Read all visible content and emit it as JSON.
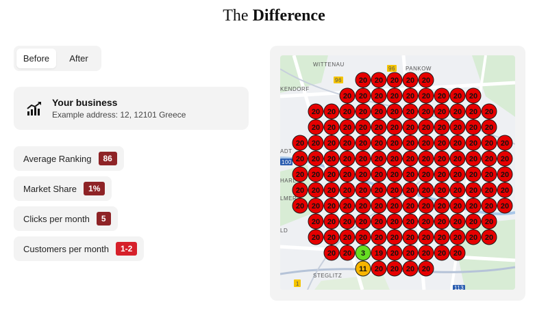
{
  "title": {
    "light": "The",
    "bold": "Difference"
  },
  "toggle": {
    "before_label": "Before",
    "after_label": "After",
    "active": "before"
  },
  "business": {
    "name": "Your business",
    "address": "Example address: 12, 12101 Greece",
    "icon": "growth-chart-icon"
  },
  "metrics": [
    {
      "label": "Average Ranking",
      "value": "86",
      "color": "#8e2326"
    },
    {
      "label": "Market Share",
      "value": "1%",
      "color": "#8e2326"
    },
    {
      "label": "Clicks per month",
      "value": "5",
      "color": "#8e2326"
    },
    {
      "label": "Customers per month",
      "value": "1-2",
      "color": "#d6202a"
    }
  ],
  "map": {
    "place_labels": [
      "WITTENAU",
      "PANKOW",
      "KENDORF",
      "ADT",
      "HARL",
      "LMER",
      "LD",
      "STEGLITZ"
    ],
    "road_badges": [
      "96",
      "96",
      "100",
      "113",
      "1"
    ],
    "pin_colors": {
      "red": "#e60000",
      "green": "#66dd22",
      "orange": "#f7b500"
    },
    "grid_rows": [
      [
        "",
        "",
        "",
        "",
        "",
        "20",
        "20",
        "20",
        "20",
        "20",
        "",
        "",
        "",
        "",
        ""
      ],
      [
        "",
        "",
        "",
        "",
        "20",
        "20",
        "20",
        "20",
        "20",
        "20",
        "20",
        "20",
        "20",
        "",
        ""
      ],
      [
        "",
        "",
        "20",
        "20",
        "20",
        "20",
        "20",
        "20",
        "20",
        "20",
        "20",
        "20",
        "20",
        "20",
        ""
      ],
      [
        "",
        "",
        "20",
        "20",
        "20",
        "20",
        "20",
        "20",
        "20",
        "20",
        "20",
        "20",
        "20",
        "20",
        ""
      ],
      [
        "",
        "20",
        "20",
        "20",
        "20",
        "20",
        "20",
        "20",
        "20",
        "20",
        "20",
        "20",
        "20",
        "20",
        "20"
      ],
      [
        "",
        "20",
        "20",
        "20",
        "20",
        "20",
        "20",
        "20",
        "20",
        "20",
        "20",
        "20",
        "20",
        "20",
        "20"
      ],
      [
        "",
        "20",
        "20",
        "20",
        "20",
        "20",
        "20",
        "20",
        "20",
        "20",
        "20",
        "20",
        "20",
        "20",
        "20"
      ],
      [
        "",
        "20",
        "20",
        "20",
        "20",
        "20",
        "20",
        "20",
        "20",
        "20",
        "20",
        "20",
        "20",
        "20",
        "20"
      ],
      [
        "",
        "20",
        "20",
        "20",
        "20",
        "20",
        "20",
        "20",
        "20",
        "20",
        "20",
        "20",
        "20",
        "20",
        "20"
      ],
      [
        "",
        "",
        "20",
        "20",
        "20",
        "20",
        "20",
        "20",
        "20",
        "20",
        "20",
        "20",
        "20",
        "20",
        ""
      ],
      [
        "",
        "",
        "20",
        "20",
        "20",
        "20",
        "20",
        "20",
        "20",
        "20",
        "20",
        "20",
        "20",
        "20",
        ""
      ],
      [
        "",
        "",
        "",
        "20",
        "20",
        "3",
        "19",
        "20",
        "20",
        "20",
        "20",
        "20",
        "",
        "",
        ""
      ],
      [
        "",
        "",
        "",
        "",
        "",
        "11",
        "20",
        "20",
        "20",
        "20",
        "",
        "",
        "",
        "",
        ""
      ]
    ]
  }
}
